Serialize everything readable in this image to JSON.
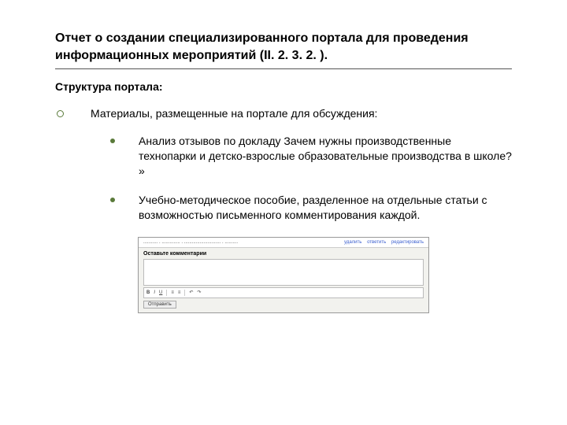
{
  "title": "Отчет о создании специализированного портала для проведения информационных мероприятий (II. 2. 3. 2. ).",
  "subtitle": "Структура портала:",
  "level1": "Материалы, размещенные на портале для обсуждения:",
  "bullets": [
    "Анализ отзывов по докладу Зачем нужны производственные технопарки и детско-взрослые образовательные производства в школе? »",
    "Учебно-методическое пособие, разделенное на отдельные статьи с возможностью письменного комментирования каждой."
  ],
  "embed": {
    "top_left": "........... . .............. . ............................ . ..........",
    "links": [
      "удалить",
      "ответить",
      "редактировать"
    ],
    "comment_label": "Оставьте комментарии",
    "toolbar": {
      "b": "B",
      "i": "I",
      "u": "U",
      "list1": "≡",
      "list2": "≡",
      "undo": "↶",
      "redo": "↷"
    },
    "submit": "Отправить"
  },
  "colors": {
    "bullet_green": "#5a7a3a",
    "link_blue": "#3b5fcf",
    "border_gray": "#999",
    "panel_bg": "#f2f2ee"
  }
}
